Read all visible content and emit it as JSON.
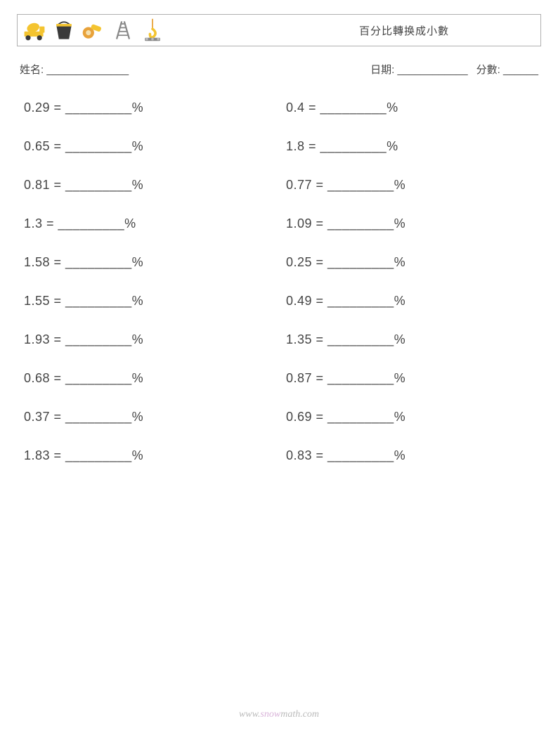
{
  "header": {
    "title": "百分比轉换成小數",
    "icons": [
      "cement-truck-icon",
      "bucket-icon",
      "grinder-icon",
      "ladder-icon",
      "crane-hook-icon"
    ]
  },
  "meta": {
    "name_label": "姓名:",
    "name_blank": "______________",
    "date_label": "日期:",
    "date_blank": "____________",
    "score_label": "分數:",
    "score_blank": "______"
  },
  "problem_template": {
    "equals": " = ",
    "blank": "_________",
    "percent": "%"
  },
  "problems_left": [
    "0.29",
    "0.65",
    "0.81",
    "1.3",
    "1.58",
    "1.55",
    "1.93",
    "0.68",
    "0.37",
    "1.83"
  ],
  "problems_right": [
    "0.4",
    "1.8",
    "0.77",
    "1.09",
    "0.25",
    "0.49",
    "1.35",
    "0.87",
    "0.69",
    "0.83"
  ],
  "footer": {
    "prefix": "www.",
    "accent": "snow",
    "mid": "math",
    "suffix": ".com"
  },
  "colors": {
    "text": "#444444",
    "border": "#b0b0b0",
    "footer_gray": "#bbbbbb",
    "footer_accent": "#d9b3d9",
    "icon_yellow": "#f4c430",
    "icon_dark": "#3a3a3a",
    "icon_orange": "#e8a23a",
    "icon_gray": "#888888"
  }
}
